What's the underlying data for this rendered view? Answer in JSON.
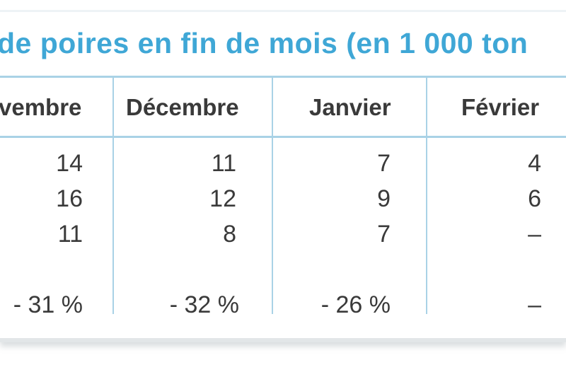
{
  "title": "de poires en fin de mois (en 1 000 ton",
  "columns": [
    "vembre",
    "Décembre",
    "Janvier",
    "Février"
  ],
  "rows": [
    [
      "14",
      "11",
      "7",
      "4"
    ],
    [
      "16",
      "12",
      "9",
      "6"
    ],
    [
      "11",
      "8",
      "7",
      "–"
    ]
  ],
  "variation": [
    "- 31 %",
    "- 32 %",
    "- 26 %",
    "–"
  ]
}
